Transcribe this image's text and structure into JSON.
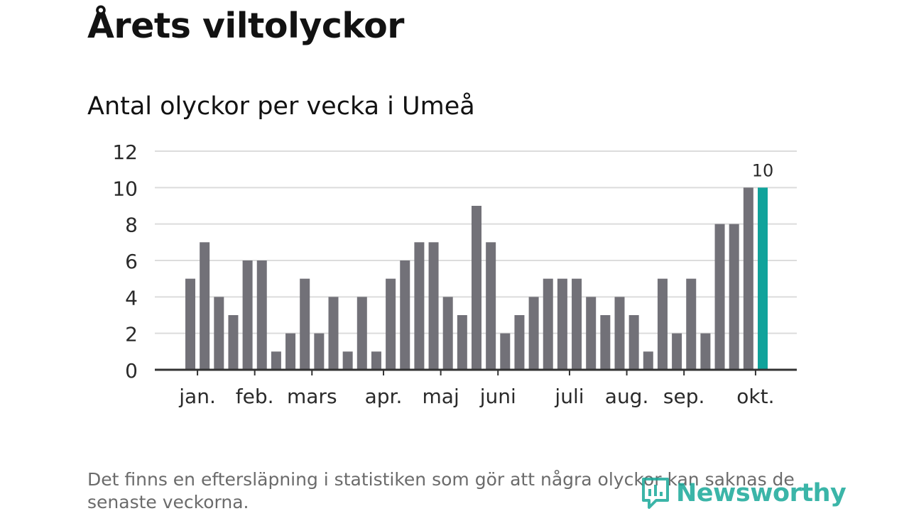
{
  "header": {
    "title": "Årets viltolyckor"
  },
  "chart_data": {
    "type": "bar",
    "subtitle": "Antal olyckor per vecka i Umeå",
    "title": "",
    "xlabel": "",
    "ylabel": "",
    "ylim": [
      0,
      12
    ],
    "yticks": [
      0,
      2,
      4,
      6,
      8,
      10,
      12
    ],
    "grid": true,
    "values": [
      5,
      7,
      4,
      3,
      6,
      6,
      1,
      2,
      5,
      2,
      4,
      1,
      4,
      1,
      5,
      6,
      7,
      7,
      4,
      3,
      9,
      7,
      2,
      3,
      4,
      5,
      5,
      5,
      4,
      3,
      4,
      3,
      1,
      5,
      2,
      5,
      2,
      8,
      8,
      10,
      10
    ],
    "month_labels": [
      {
        "label": "jan.",
        "week": 1
      },
      {
        "label": "feb.",
        "week": 5
      },
      {
        "label": "mars",
        "week": 9
      },
      {
        "label": "apr.",
        "week": 14
      },
      {
        "label": "maj",
        "week": 18
      },
      {
        "label": "juni",
        "week": 22
      },
      {
        "label": "juli",
        "week": 27
      },
      {
        "label": "aug.",
        "week": 31
      },
      {
        "label": "sep.",
        "week": 35
      },
      {
        "label": "okt.",
        "week": 40
      }
    ],
    "highlight_index": 40,
    "highlight_label": "10",
    "colors": {
      "bar": "#727178",
      "highlight": "#10a39b",
      "grid": "#dcdcdc",
      "axis": "#333333",
      "text": "#2a2a2a"
    }
  },
  "footnote": "Det finns en eftersläpning i statistiken som gör att några olyckor kan saknas de senaste veckorna.",
  "brand": {
    "name": "Newsworthy",
    "icon": "newsworthy-logo-icon",
    "color": "#1aa999"
  }
}
